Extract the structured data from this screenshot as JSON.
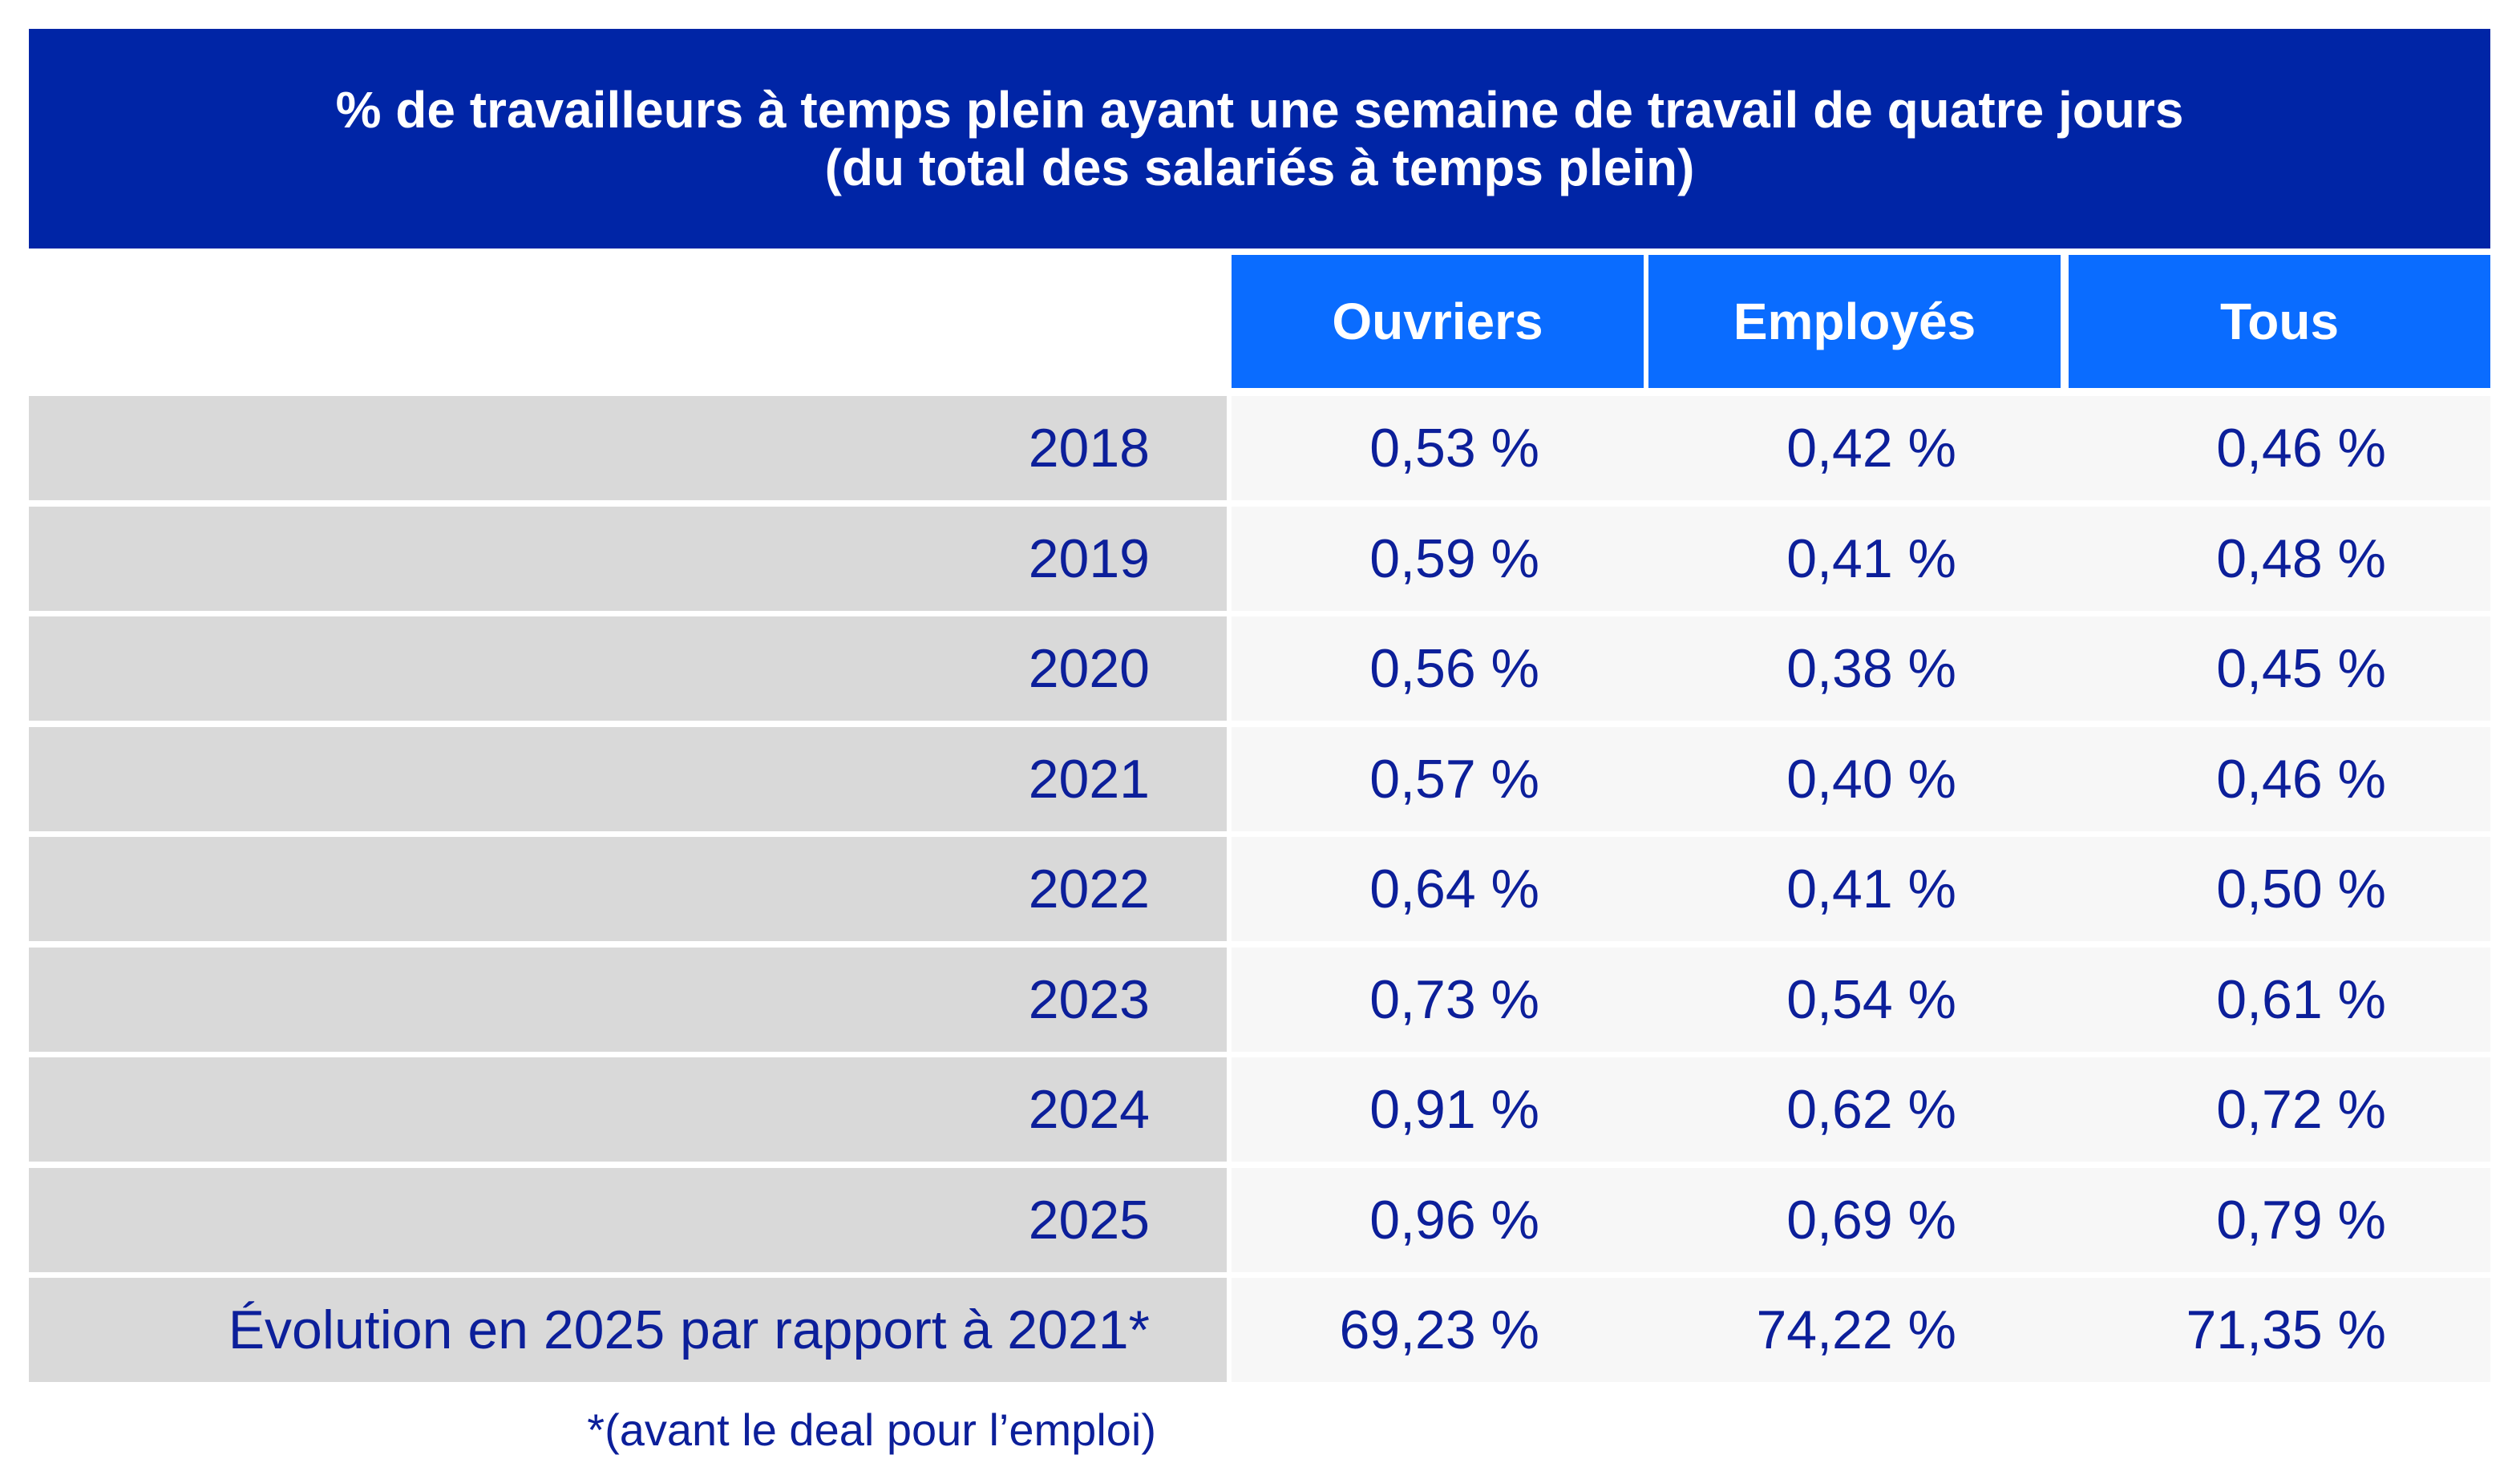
{
  "title": {
    "line1": "% de travailleurs à temps plein ayant une semaine de travail de quatre jours",
    "line2": "(du total des salariés à temps plein)"
  },
  "colors": {
    "title_bg": "#0025a6",
    "header_bg": "#0a6cff",
    "label_bg": "#d9d9d9",
    "cell_bg": "#f7f7f7",
    "text": "#0c1f9a"
  },
  "footnote": "*(avant le deal pour l’emploi)",
  "chart_data": {
    "type": "table",
    "title": "% de travailleurs à temps plein ayant une semaine de travail de quatre jours (du total des salariés à temps plein)",
    "columns": [
      "Ouvriers",
      "Employés",
      "Tous"
    ],
    "rows": [
      {
        "label": "2018",
        "values": [
          "0,53 %",
          "0,42 %",
          "0,46 %"
        ]
      },
      {
        "label": "2019",
        "values": [
          "0,59 %",
          "0,41 %",
          "0,48 %"
        ]
      },
      {
        "label": "2020",
        "values": [
          "0,56 %",
          "0,38 %",
          "0,45 %"
        ]
      },
      {
        "label": "2021",
        "values": [
          "0,57 %",
          "0,40 %",
          "0,46 %"
        ]
      },
      {
        "label": "2022",
        "values": [
          "0,64 %",
          "0,41 %",
          "0,50 %"
        ]
      },
      {
        "label": "2023",
        "values": [
          "0,73 %",
          "0,54 %",
          "0,61 %"
        ]
      },
      {
        "label": "2024",
        "values": [
          "0,91 %",
          "0,62 %",
          "0,72 %"
        ]
      },
      {
        "label": "2025",
        "values": [
          "0,96 %",
          "0,69 %",
          "0,79 %"
        ]
      },
      {
        "label": "Évolution en 2025 par rapport à 2021*",
        "values": [
          "69,23 %",
          "74,22 %",
          "71,35 %"
        ]
      }
    ]
  }
}
